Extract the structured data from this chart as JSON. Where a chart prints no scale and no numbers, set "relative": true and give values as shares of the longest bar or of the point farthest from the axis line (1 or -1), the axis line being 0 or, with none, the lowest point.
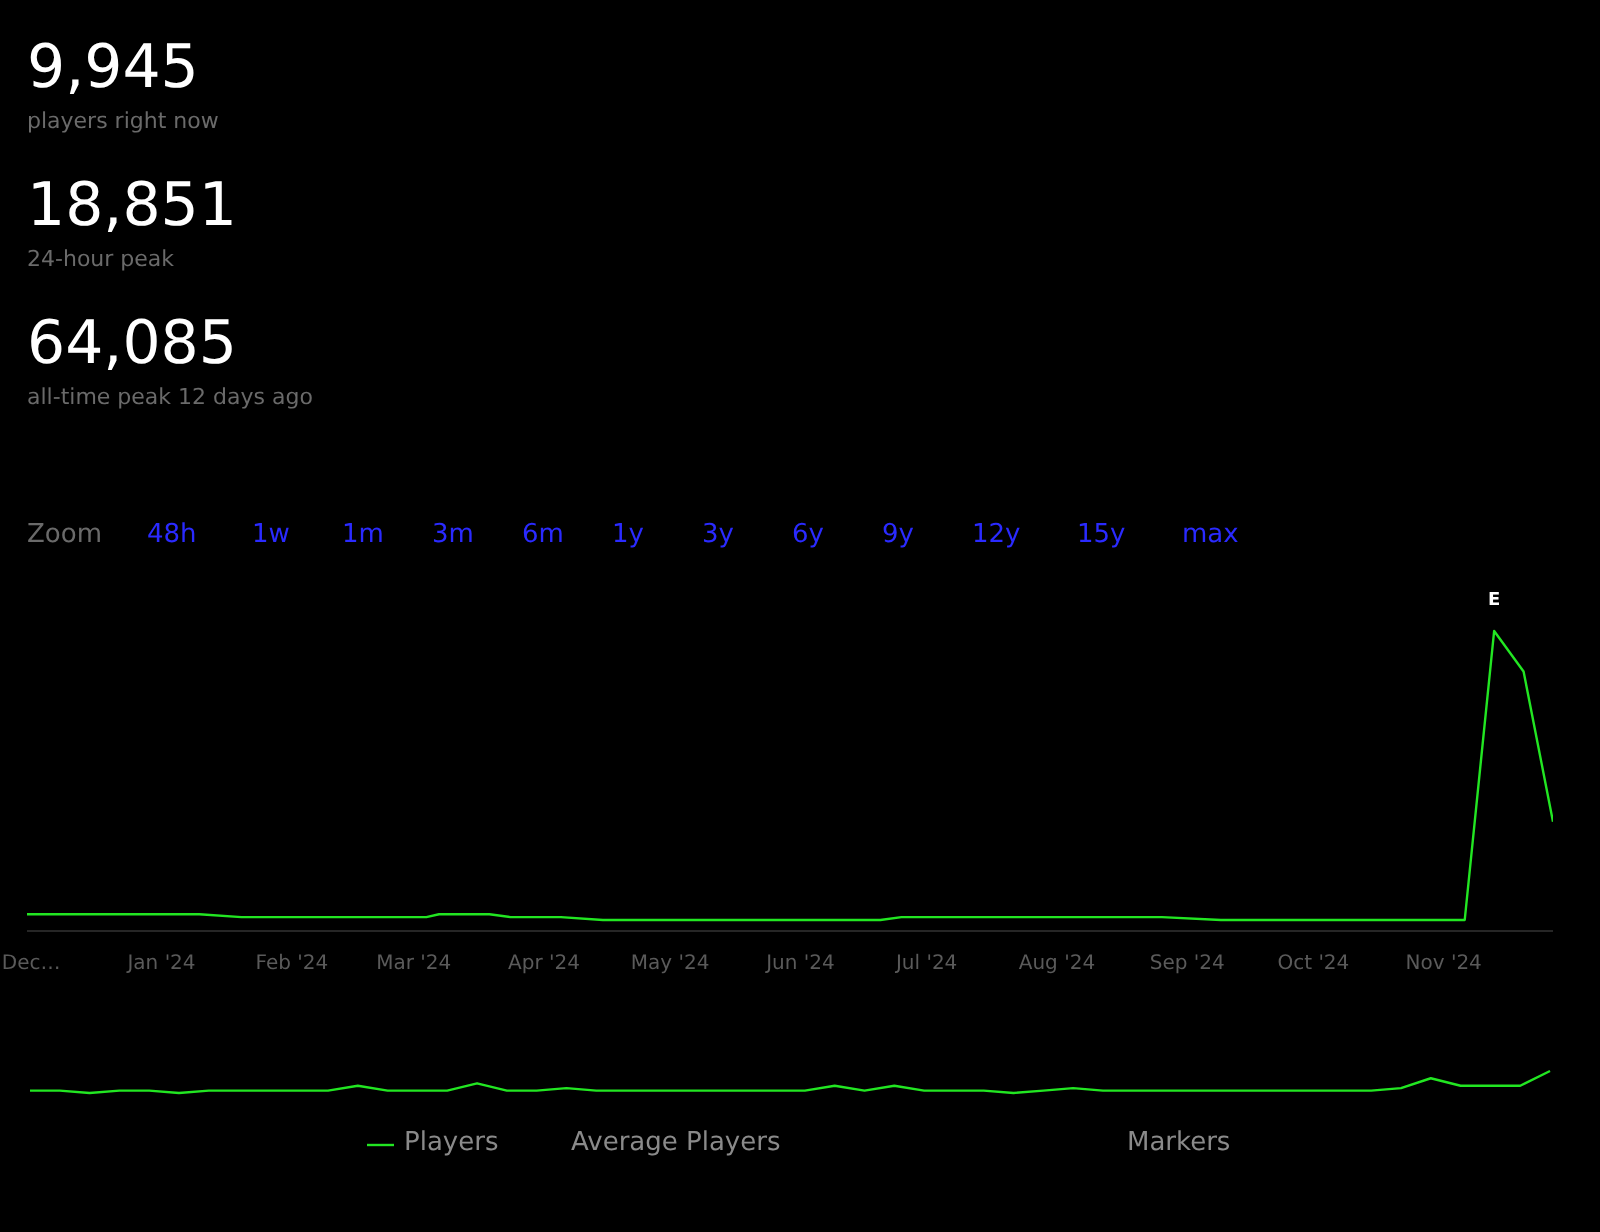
{
  "chart_data": [
    {
      "type": "line",
      "relative": true,
      "tick_labels": "x",
      "grid": false,
      "x": [
        "2023-11-30",
        "2023-12-12",
        "2023-12-22",
        "2024-01-05",
        "2024-01-10",
        "2024-01-20",
        "2024-02-03",
        "2024-02-17",
        "2024-03-04",
        "2024-03-07",
        "2024-03-12",
        "2024-03-19",
        "2024-03-24",
        "2024-04-05",
        "2024-04-15",
        "2024-04-29",
        "2024-05-23",
        "2024-06-16",
        "2024-06-20",
        "2024-06-25",
        "2024-07-05",
        "2024-07-09",
        "2024-07-28",
        "2024-08-26",
        "2024-09-09",
        "2024-10-22",
        "2024-11-06",
        "2024-11-13",
        "2024-11-20",
        "2024-11-27"
      ],
      "xlim": [
        "2023-11-30",
        "2024-11-27"
      ],
      "xticks": [
        {
          "value": "2023-12-01",
          "label": "Dec…"
        },
        {
          "value": "2024-01-01",
          "label": "Jan '24"
        },
        {
          "value": "2024-02-01",
          "label": "Feb '24"
        },
        {
          "value": "2024-03-01",
          "label": "Mar '24"
        },
        {
          "value": "2024-04-01",
          "label": "Apr '24"
        },
        {
          "value": "2024-05-01",
          "label": "May '24"
        },
        {
          "value": "2024-06-01",
          "label": "Jun '24"
        },
        {
          "value": "2024-07-01",
          "label": "Jul '24"
        },
        {
          "value": "2024-08-01",
          "label": "Aug '24"
        },
        {
          "value": "2024-09-01",
          "label": "Sep '24"
        },
        {
          "value": "2024-10-01",
          "label": "Oct '24"
        },
        {
          "value": "2024-11-01",
          "label": "Nov '24"
        }
      ],
      "series": [
        {
          "color": "#22e622",
          "values": [
            0.02,
            0.02,
            0.02,
            0.02,
            0.02,
            0.01,
            0.01,
            0.01,
            0.01,
            0.02,
            0.02,
            0.02,
            0.01,
            0.01,
            0.0,
            0.0,
            0.0,
            0.0,
            0.0,
            0.01,
            0.01,
            0.01,
            0.01,
            0.01,
            0.0,
            0.0,
            0.0,
            1.0,
            0.86,
            0.34
          ]
        }
      ],
      "annotations": [
        "9,945",
        "players right now",
        "18,851",
        "24-hour peak",
        "64,085",
        "all-time peak 12 days ago",
        "Zoom",
        "48h",
        "1w",
        "1m",
        "3m",
        "6m",
        "1y",
        "3y",
        "6y",
        "9y",
        "12y",
        "15y",
        "max",
        {
          "text": "E",
          "x": "2024-11-13",
          "y": 1.0
        }
      ]
    },
    {
      "type": "line",
      "relative": true,
      "tick_labels": false,
      "grid": false,
      "legend": "bottom",
      "categories": [
        null,
        null,
        null,
        null,
        null,
        null,
        null,
        null,
        null,
        null,
        null,
        null,
        null,
        null,
        null,
        null,
        null,
        null,
        null,
        null,
        null,
        null,
        null,
        null,
        null,
        null,
        null,
        null,
        null,
        null,
        null,
        null,
        null,
        null,
        null,
        null,
        null,
        null,
        null,
        null,
        null,
        null,
        null,
        null,
        null,
        null,
        null,
        null,
        null,
        null,
        null,
        null
      ],
      "series": [
        {
          "name": "Players",
          "color": "#22e622",
          "values": [
            0.11,
            0.11,
            0.0,
            0.11,
            0.11,
            0.0,
            0.11,
            0.11,
            0.11,
            0.11,
            0.11,
            0.33,
            0.11,
            0.11,
            0.11,
            0.44,
            0.11,
            0.11,
            0.22,
            0.11,
            0.11,
            0.11,
            0.11,
            0.11,
            0.11,
            0.11,
            0.11,
            0.33,
            0.11,
            0.33,
            0.11,
            0.11,
            0.11,
            0.0,
            0.11,
            0.22,
            0.11,
            0.11,
            0.11,
            0.11,
            0.11,
            0.11,
            0.11,
            0.11,
            0.11,
            0.11,
            0.22,
            0.67,
            0.33,
            0.33,
            0.33,
            1.0
          ]
        }
      ],
      "annotations": [
        "Average Players",
        "Markers"
      ]
    }
  ]
}
